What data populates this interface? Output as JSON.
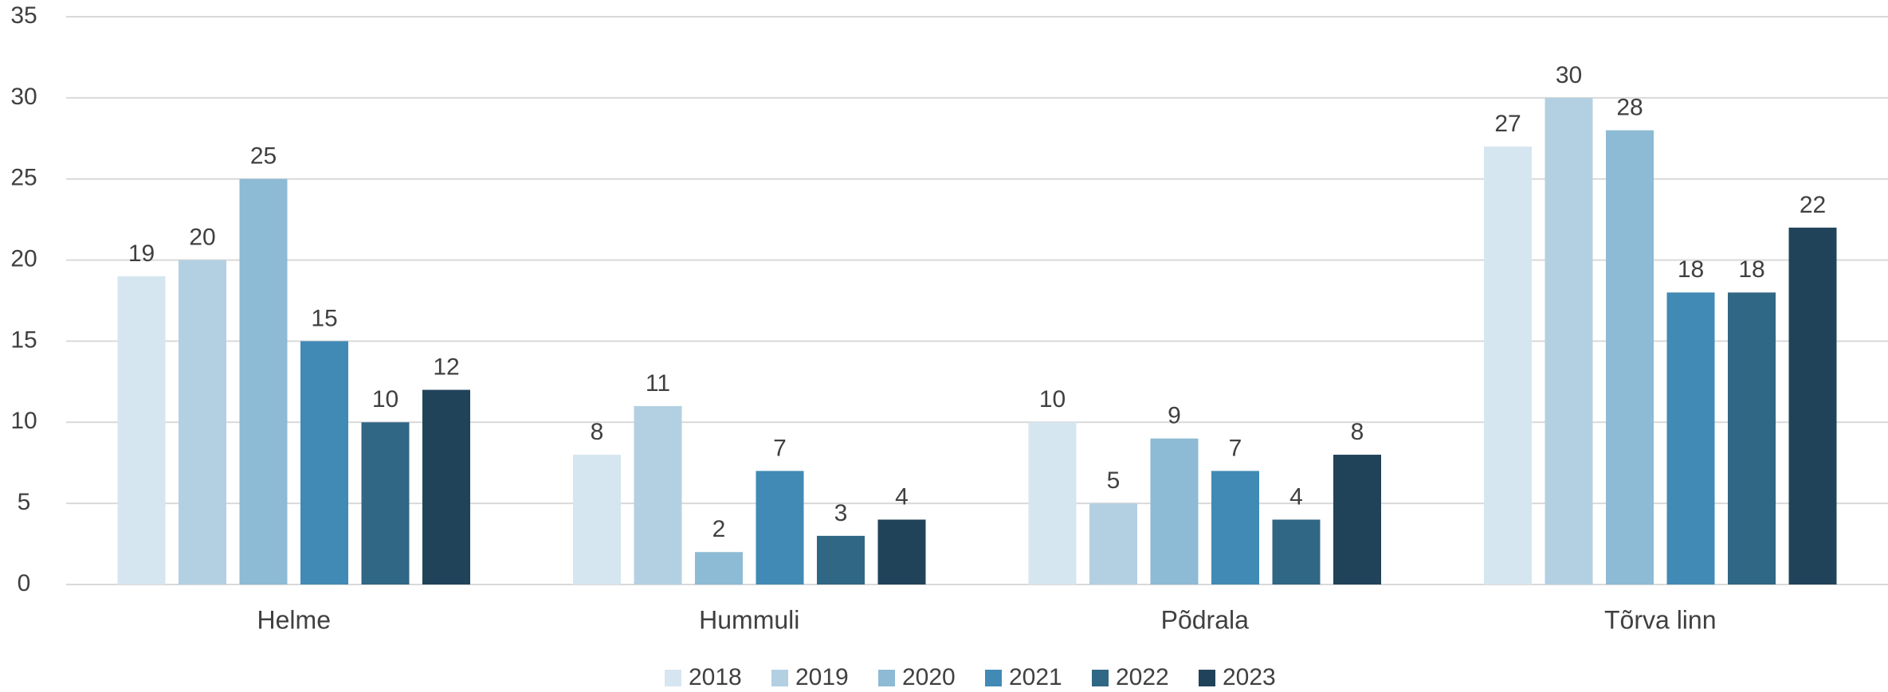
{
  "chart_data": {
    "type": "bar",
    "categories": [
      "Helme",
      "Hummuli",
      "Põdrala",
      "Tõrva linn"
    ],
    "series": [
      {
        "name": "2018",
        "color": "#d6e6f0",
        "values": [
          19,
          8,
          10,
          27
        ]
      },
      {
        "name": "2019",
        "color": "#b3d0e2",
        "values": [
          20,
          11,
          5,
          30
        ]
      },
      {
        "name": "2020",
        "color": "#8dbad4",
        "values": [
          25,
          2,
          9,
          28
        ]
      },
      {
        "name": "2021",
        "color": "#418ab5",
        "values": [
          15,
          7,
          7,
          18
        ]
      },
      {
        "name": "2022",
        "color": "#306785",
        "values": [
          10,
          3,
          4,
          18
        ]
      },
      {
        "name": "2023",
        "color": "#21435a",
        "values": [
          12,
          4,
          8,
          22
        ]
      }
    ],
    "ylim": [
      0,
      35
    ],
    "yticks": [
      0,
      5,
      10,
      15,
      20,
      25,
      30,
      35
    ],
    "grid": true,
    "legend": "bottom"
  }
}
